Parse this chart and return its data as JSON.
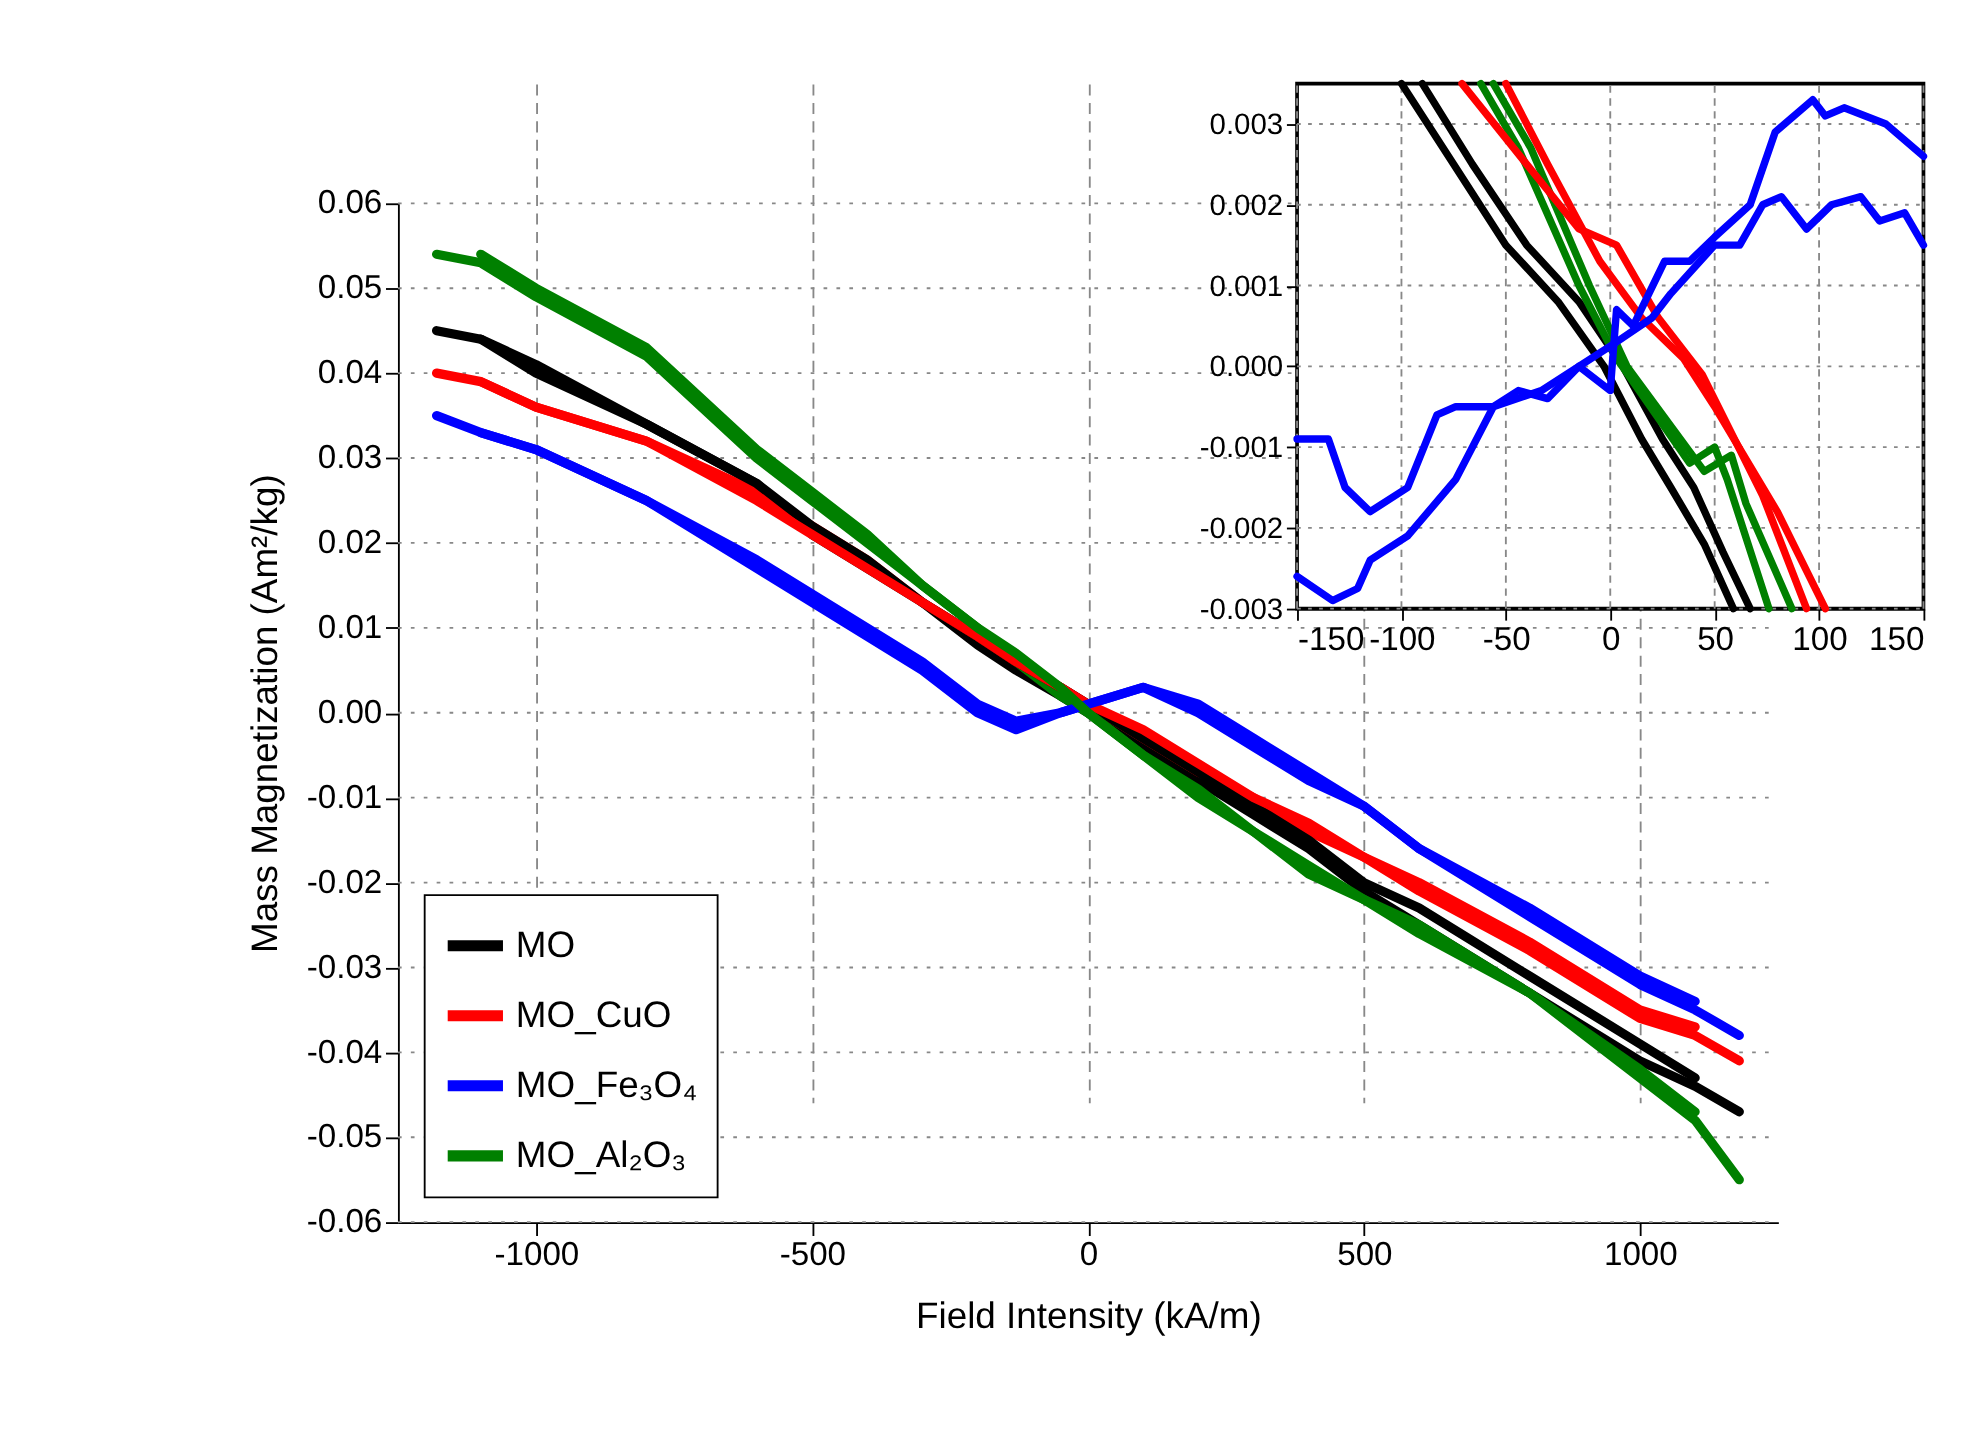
{
  "chart_data": [
    {
      "type": "line",
      "xlabel": "Field Intensity (kA/m)",
      "ylabel": "Mass Magnetization (Am²/kg)",
      "series": [
        {
          "name": "MO",
          "color": "#000000",
          "x": [
            -1180,
            -1100,
            -1000,
            -800,
            -600,
            -500,
            -400,
            -300,
            -200,
            -130,
            -50,
            0,
            100,
            200,
            300,
            400,
            500,
            600,
            800,
            1000,
            1100,
            1180
          ],
          "values": [
            0.045,
            0.044,
            0.04,
            0.034,
            0.027,
            0.021,
            0.017,
            0.013,
            0.008,
            0.005,
            0.002,
            0.0,
            -0.004,
            -0.008,
            -0.012,
            -0.016,
            -0.021,
            -0.025,
            -0.033,
            -0.041,
            -0.044,
            -0.047
          ]
        },
        {
          "name": "MO_CuO",
          "color": "#ff0000",
          "x": [
            -1180,
            -1100,
            -1000,
            -800,
            -600,
            -500,
            -400,
            -300,
            -200,
            -130,
            -50,
            0,
            100,
            200,
            300,
            400,
            500,
            600,
            800,
            1000,
            1100,
            1180
          ],
          "values": [
            0.04,
            0.039,
            0.036,
            0.032,
            0.026,
            0.022,
            0.018,
            0.013,
            0.009,
            0.006,
            0.003,
            0.001,
            -0.003,
            -0.007,
            -0.01,
            -0.014,
            -0.017,
            -0.021,
            -0.028,
            -0.036,
            -0.038,
            -0.041
          ]
        },
        {
          "name": "MO_Fe₃O₄",
          "color": "#0000ff",
          "x": [
            -1180,
            -1100,
            -1000,
            -800,
            -600,
            -500,
            -400,
            -300,
            -200,
            -130,
            -50,
            0,
            100,
            200,
            300,
            400,
            500,
            600,
            800,
            1000,
            1100,
            1180
          ],
          "values": [
            0.035,
            0.033,
            0.031,
            0.025,
            0.017,
            0.013,
            0.009,
            0.005,
            0.0,
            -0.002,
            0.0,
            0.001,
            0.003,
            0.0,
            -0.004,
            -0.008,
            -0.011,
            -0.016,
            -0.024,
            -0.032,
            -0.035,
            -0.038
          ]
        },
        {
          "name": "MO_Al₂O₃",
          "color": "#008000",
          "x": [
            -1180,
            -1100,
            -1000,
            -800,
            -600,
            -500,
            -400,
            -300,
            -200,
            -130,
            -50,
            0,
            100,
            200,
            300,
            400,
            500,
            600,
            800,
            1000,
            1100,
            1180
          ],
          "values": [
            0.054,
            0.053,
            0.049,
            0.042,
            0.03,
            0.025,
            0.02,
            0.015,
            0.01,
            0.006,
            0.002,
            0.0,
            -0.005,
            -0.01,
            -0.014,
            -0.019,
            -0.022,
            -0.026,
            -0.033,
            -0.043,
            -0.048,
            -0.055
          ]
        },
        {
          "color": "#000000",
          "x": [
            1100,
            1000,
            800,
            600,
            500,
            400,
            300,
            200,
            100,
            0,
            -50,
            -130,
            -200,
            -300,
            -400,
            -500,
            -600,
            -800,
            -1000,
            -1100
          ],
          "values": [
            -0.043,
            -0.039,
            -0.031,
            -0.023,
            -0.02,
            -0.015,
            -0.011,
            -0.007,
            -0.003,
            0.001,
            0.003,
            0.006,
            0.009,
            0.013,
            0.018,
            0.022,
            0.027,
            0.034,
            0.041,
            0.044
          ]
        },
        {
          "color": "#ff0000",
          "x": [
            1100,
            1000,
            800,
            600,
            500,
            400,
            300,
            200,
            100,
            0,
            -50,
            -130,
            -200,
            -300,
            -400,
            -500,
            -600,
            -800,
            -1000,
            -1100
          ],
          "values": [
            -0.037,
            -0.035,
            -0.027,
            -0.02,
            -0.017,
            -0.013,
            -0.01,
            -0.006,
            -0.002,
            0.001,
            0.003,
            0.006,
            0.009,
            0.013,
            0.017,
            0.021,
            0.025,
            0.032,
            0.036,
            0.039
          ]
        },
        {
          "color": "#0000ff",
          "x": [
            1100,
            1000,
            800,
            600,
            500,
            400,
            300,
            200,
            100,
            0,
            -50,
            -130,
            -200,
            -300,
            -400,
            -500,
            -600,
            -800,
            -1000,
            -1100
          ],
          "values": [
            -0.034,
            -0.031,
            -0.023,
            -0.016,
            -0.011,
            -0.007,
            -0.003,
            0.001,
            0.003,
            0.001,
            0.0,
            -0.001,
            0.001,
            0.006,
            0.01,
            0.014,
            0.018,
            0.025,
            0.031,
            0.033
          ]
        },
        {
          "color": "#008000",
          "x": [
            1100,
            1000,
            800,
            600,
            500,
            400,
            300,
            200,
            100,
            0,
            -50,
            -130,
            -200,
            -300,
            -400,
            -500,
            -600,
            -800,
            -1000,
            -1100
          ],
          "values": [
            -0.047,
            -0.042,
            -0.033,
            -0.025,
            -0.022,
            -0.018,
            -0.014,
            -0.009,
            -0.005,
            0.0,
            0.003,
            0.007,
            0.01,
            0.015,
            0.021,
            0.026,
            0.031,
            0.043,
            0.05,
            0.054
          ]
        }
      ],
      "xlim": [
        -1250,
        1250
      ],
      "ylim": [
        -0.06,
        0.06
      ],
      "xticks": [
        -1000,
        -500,
        0,
        500,
        1000
      ],
      "yticks": [
        -0.06,
        -0.05,
        -0.04,
        -0.03,
        -0.02,
        -0.01,
        {
          "value": 0,
          "label": "0.00"
        },
        0.01,
        0.02,
        0.03,
        0.04,
        0.05,
        0.06
      ],
      "grid": true,
      "legend": "bottom left"
    },
    {
      "type": "line",
      "series": [
        {
          "color": "#000000",
          "x": [
            -100,
            -75,
            -50,
            -25,
            -3,
            15,
            29,
            45,
            59
          ],
          "values": [
            0.0035,
            0.0025,
            0.0015,
            0.0008,
            0.0,
            -0.0009,
            -0.0015,
            -0.0022,
            -0.003
          ]
        },
        {
          "color": "#000000",
          "x": [
            67,
            54,
            40,
            25,
            6,
            -15,
            -40,
            -66,
            -90
          ],
          "values": [
            -0.003,
            -0.0023,
            -0.0015,
            -0.0009,
            0.0,
            0.0008,
            0.0015,
            0.0025,
            0.0035
          ]
        },
        {
          "color": "#008000",
          "x": [
            -62,
            -44,
            -15,
            3,
            38,
            50,
            56,
            76
          ],
          "values": [
            0.0035,
            0.0027,
            0.001,
            0.0001,
            -0.0012,
            -0.001,
            -0.0014,
            -0.003
          ]
        },
        {
          "color": "#008000",
          "x": [
            87,
            65,
            58,
            45,
            8,
            -10,
            -38,
            -56
          ],
          "values": [
            -0.003,
            -0.0017,
            -0.0011,
            -0.0013,
            0.0,
            0.001,
            0.0027,
            0.0035
          ]
        },
        {
          "color": "#ff0000",
          "x": [
            -71,
            -40,
            -15,
            3,
            23,
            44,
            73,
            94
          ],
          "values": [
            0.0035,
            0.0025,
            0.0017,
            0.0015,
            0.0006,
            -0.0001,
            -0.0016,
            -0.003
          ]
        },
        {
          "color": "#ff0000",
          "x": [
            103,
            80,
            50,
            35,
            15,
            -5,
            -30,
            -50
          ],
          "values": [
            -0.003,
            -0.0018,
            -0.0005,
            0.0001,
            0.0006,
            0.0013,
            0.0025,
            0.0035
          ]
        },
        {
          "color": "#0000ff",
          "x": [
            -150,
            -133,
            -121,
            -115,
            -97,
            -74,
            -56,
            -33,
            -15,
            3,
            20,
            29,
            50,
            62,
            73,
            82,
            94,
            106,
            120,
            129,
            141,
            150
          ],
          "values": [
            -0.0026,
            -0.0029,
            -0.00275,
            -0.0024,
            -0.0021,
            -0.0014,
            -0.0005,
            -0.0003,
            0.0,
            0.0003,
            0.0006,
            0.0009,
            0.0015,
            0.0015,
            0.002,
            0.0021,
            0.0017,
            0.002,
            0.0021,
            0.0018,
            0.0019,
            0.0015
          ]
        },
        {
          "color": "#0000ff",
          "x": [
            150,
            132,
            112,
            103,
            97,
            79,
            67,
            50,
            38,
            26,
            11,
            3,
            0,
            -15,
            -30,
            -44,
            -56,
            -74,
            -83,
            -97,
            -115,
            -127,
            -135,
            -150
          ],
          "values": [
            0.0026,
            0.003,
            0.0032,
            0.0031,
            0.0033,
            0.0029,
            0.002,
            0.0016,
            0.0013,
            0.0013,
            0.0005,
            0.0007,
            -0.0003,
            0.0,
            -0.0004,
            -0.0003,
            -0.0005,
            -0.0005,
            -0.0006,
            -0.0015,
            -0.0018,
            -0.0015,
            -0.0009,
            -0.0009
          ]
        }
      ],
      "xlim": [
        -150,
        150
      ],
      "ylim": [
        -0.003,
        0.0035
      ],
      "xticks": [
        -150,
        -100,
        -50,
        0,
        50,
        100,
        150
      ],
      "yticks": [
        -0.003,
        -0.002,
        -0.001,
        {
          "value": 0,
          "label": "0.000"
        },
        0.001,
        0.002,
        0.003
      ],
      "grid": true
    }
  ]
}
